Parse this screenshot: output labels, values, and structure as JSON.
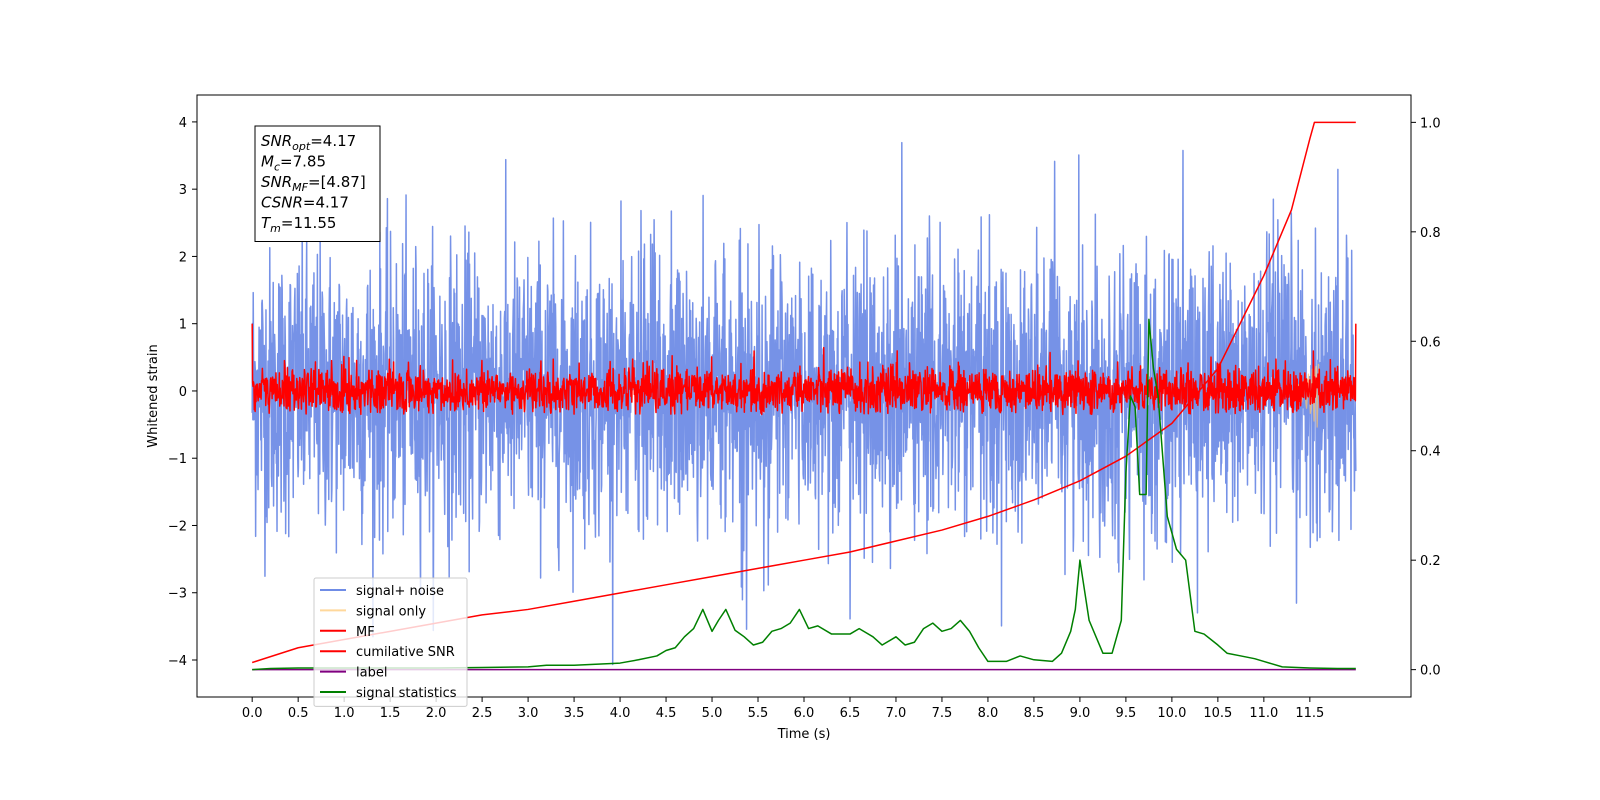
{
  "chart_data": {
    "type": "line",
    "xlabel": "Time (s)",
    "ylabel": "Whitened strain",
    "xlim": [
      -0.6,
      12.6
    ],
    "ylim": [
      -4.55,
      4.4
    ],
    "y2lim": [
      -0.05,
      1.05
    ],
    "x_ticks": [
      0.0,
      0.5,
      1.0,
      1.5,
      2.0,
      2.5,
      3.0,
      3.5,
      4.0,
      4.5,
      5.0,
      5.5,
      6.0,
      6.5,
      7.0,
      7.5,
      8.0,
      8.5,
      9.0,
      9.5,
      10.0,
      10.5,
      11.0,
      11.5
    ],
    "x_tick_labels": [
      "0.0",
      "0.5",
      "1.0",
      "1.5",
      "2.0",
      "2.5",
      "3.0",
      "3.5",
      "4.0",
      "4.5",
      "5.0",
      "5.5",
      "6.0",
      "6.5",
      "7.0",
      "7.5",
      "8.0",
      "8.5",
      "9.0",
      "9.5",
      "10.0",
      "10.5",
      "11.0",
      "11.5"
    ],
    "y_ticks": [
      -4,
      -3,
      -2,
      -1,
      0,
      1,
      2,
      3,
      4
    ],
    "y_tick_labels": [
      "−4",
      "−3",
      "−2",
      "−1",
      "0",
      "1",
      "2",
      "3",
      "4"
    ],
    "y2_ticks": [
      0.0,
      0.2,
      0.4,
      0.6,
      0.8,
      1.0
    ],
    "y2_tick_labels": [
      "0.0",
      "0.2",
      "0.4",
      "0.6",
      "0.8",
      "1.0"
    ],
    "grid": false,
    "legend_position": "lower-left",
    "annotation_box": {
      "position": "top-left",
      "lines": [
        {
          "sym": "SNR",
          "sub": "opt",
          "val": "=4.17"
        },
        {
          "sym": "M",
          "sub": "c",
          "val": "=7.85"
        },
        {
          "sym": "SNR",
          "sub": "MF",
          "val": "=[4.87]"
        },
        {
          "sym": "CSNR",
          "sub": "",
          "val": "=4.17"
        },
        {
          "sym": "T",
          "sub": "m",
          "val": "=11.55"
        }
      ]
    },
    "series": [
      {
        "name": "signal+ noise",
        "color": "#6f8ce6",
        "axis": "left",
        "kind": "noise",
        "x_range": [
          0.0,
          12.0
        ],
        "approx_std": 1.05,
        "y_extent": [
          -4.15,
          4.0
        ]
      },
      {
        "name": "signal only",
        "color": "#ffc870",
        "axis": "left",
        "kind": "chirp",
        "x_range": [
          11.2,
          11.6
        ],
        "y_extent": [
          -0.6,
          0.5
        ]
      },
      {
        "name": "MF",
        "color": "#ff0000",
        "axis": "left",
        "kind": "noise",
        "x_range": [
          0.0,
          12.0
        ],
        "approx_std": 0.18,
        "y_extent": [
          -0.35,
          0.65
        ],
        "endpoints": {
          "start": 1.0,
          "end": 1.0
        }
      },
      {
        "name": "cumilative SNR",
        "color": "#ff0000",
        "axis": "right",
        "x": [
          0.0,
          0.5,
          1.0,
          1.5,
          2.0,
          2.5,
          3.0,
          3.5,
          4.0,
          4.5,
          5.0,
          5.5,
          6.0,
          6.5,
          7.0,
          7.5,
          8.0,
          8.5,
          9.0,
          9.5,
          10.0,
          10.5,
          11.0,
          11.3,
          11.5,
          11.55,
          12.0
        ],
        "y": [
          0.013,
          0.04,
          0.055,
          0.07,
          0.085,
          0.1,
          0.11,
          0.125,
          0.14,
          0.155,
          0.17,
          0.185,
          0.2,
          0.215,
          0.235,
          0.255,
          0.28,
          0.31,
          0.345,
          0.39,
          0.45,
          0.55,
          0.72,
          0.84,
          0.97,
          1.0,
          1.0
        ]
      },
      {
        "name": "label",
        "color": "#800080",
        "axis": "right",
        "x": [
          0.0,
          12.0
        ],
        "y": [
          0.0,
          0.0
        ]
      },
      {
        "name": "signal statistics",
        "color": "#008000",
        "axis": "right",
        "x": [
          0.0,
          0.2,
          0.5,
          1.0,
          1.5,
          2.0,
          2.5,
          3.0,
          3.2,
          3.5,
          4.0,
          4.2,
          4.4,
          4.5,
          4.6,
          4.7,
          4.8,
          4.9,
          5.0,
          5.07,
          5.15,
          5.25,
          5.35,
          5.45,
          5.55,
          5.65,
          5.75,
          5.85,
          5.95,
          6.05,
          6.15,
          6.3,
          6.5,
          6.6,
          6.75,
          6.85,
          7.0,
          7.1,
          7.2,
          7.3,
          7.4,
          7.5,
          7.6,
          7.7,
          7.8,
          7.9,
          8.0,
          8.2,
          8.35,
          8.5,
          8.7,
          8.8,
          8.9,
          8.95,
          9.0,
          9.1,
          9.25,
          9.35,
          9.45,
          9.5,
          9.55,
          9.6,
          9.65,
          9.72,
          9.75,
          9.8,
          9.85,
          9.95,
          10.05,
          10.15,
          10.25,
          10.35,
          10.5,
          10.6,
          10.75,
          10.9,
          11.0,
          11.2,
          11.5,
          11.8,
          11.95,
          12.0
        ],
        "y": [
          0.0,
          0.002,
          0.003,
          0.003,
          0.003,
          0.003,
          0.004,
          0.005,
          0.008,
          0.008,
          0.012,
          0.018,
          0.025,
          0.035,
          0.04,
          0.06,
          0.075,
          0.11,
          0.07,
          0.09,
          0.11,
          0.072,
          0.06,
          0.045,
          0.05,
          0.07,
          0.075,
          0.085,
          0.11,
          0.075,
          0.08,
          0.065,
          0.065,
          0.075,
          0.06,
          0.045,
          0.06,
          0.045,
          0.05,
          0.075,
          0.085,
          0.07,
          0.075,
          0.09,
          0.07,
          0.04,
          0.015,
          0.015,
          0.025,
          0.018,
          0.015,
          0.03,
          0.07,
          0.11,
          0.2,
          0.09,
          0.03,
          0.03,
          0.09,
          0.36,
          0.5,
          0.48,
          0.32,
          0.32,
          0.64,
          0.55,
          0.5,
          0.28,
          0.22,
          0.2,
          0.07,
          0.065,
          0.045,
          0.03,
          0.025,
          0.02,
          0.015,
          0.005,
          0.003,
          0.002,
          0.002,
          0.002
        ]
      }
    ]
  }
}
